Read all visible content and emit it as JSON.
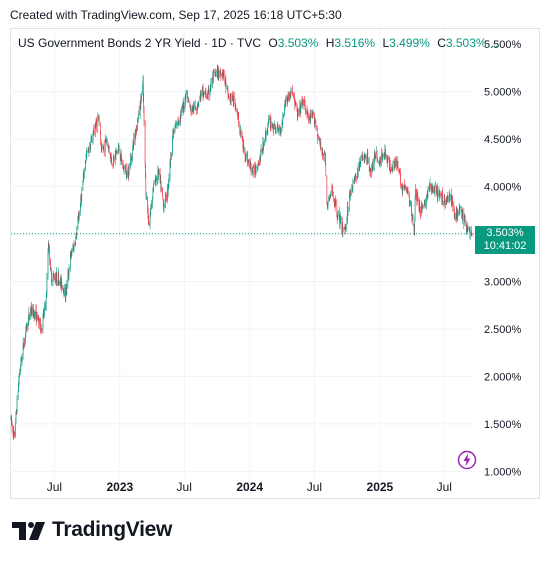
{
  "header": {
    "text": "Created with TradingView.com, Sep 17, 2025 16:18 UTC+5:30"
  },
  "legend": {
    "title": "US Government Bonds 2 YR Yield · 1D · TVC",
    "o_label": "O",
    "o_value": "3.503%",
    "h_label": "H",
    "h_value": "3.516%",
    "l_label": "L",
    "l_value": "3.499%",
    "c_label": "C",
    "c_value": "3.503%…"
  },
  "price_tag": {
    "price": "3.503%",
    "countdown": "10:41:02"
  },
  "logo": {
    "text": "TradingView",
    "icon": "tradingview-logo-icon"
  },
  "icons": {
    "bolt": "lightning-bolt-icon"
  },
  "colors": {
    "up": "#089981",
    "down": "#f23645",
    "grid": "#f0f3fa",
    "last_price_line": "#089981",
    "bolt": "#9c27b0"
  },
  "chart_data": {
    "type": "candlestick",
    "title": "US Government Bonds 2 YR Yield",
    "x_tick_labels": [
      "Jul",
      "2023",
      "Jul",
      "2024",
      "Jul",
      "2025",
      "Jul"
    ],
    "y_tick_labels": [
      "5.500%",
      "5.000%",
      "4.500%",
      "4.000%",
      "3.500%",
      "3.000%",
      "2.500%",
      "2.000%",
      "1.500%",
      "1.000%"
    ],
    "y_ticks": [
      5.5,
      5.0,
      4.5,
      4.0,
      3.5,
      3.0,
      2.5,
      2.0,
      1.5,
      1.0
    ],
    "ylim": [
      0.93,
      5.66
    ],
    "x_range": [
      "2022-03-01",
      "2025-09-17"
    ],
    "last_price": 3.503,
    "grid": true,
    "series": [
      {
        "path": [
          [
            "2022-03-01",
            1.55
          ],
          [
            "2022-03-10",
            1.35
          ],
          [
            "2022-03-25",
            2.05
          ],
          [
            "2022-04-10",
            2.45
          ],
          [
            "2022-04-25",
            2.7
          ],
          [
            "2022-05-10",
            2.65
          ],
          [
            "2022-05-25",
            2.5
          ],
          [
            "2022-06-08",
            2.8
          ],
          [
            "2022-06-14",
            3.42
          ],
          [
            "2022-06-22",
            3.05
          ],
          [
            "2022-07-08",
            3.05
          ],
          [
            "2022-07-25",
            2.95
          ],
          [
            "2022-08-01",
            2.85
          ],
          [
            "2022-08-15",
            3.25
          ],
          [
            "2022-08-30",
            3.45
          ],
          [
            "2022-09-15",
            3.9
          ],
          [
            "2022-09-27",
            4.3
          ],
          [
            "2022-10-10",
            4.45
          ],
          [
            "2022-10-21",
            4.6
          ],
          [
            "2022-11-03",
            4.75
          ],
          [
            "2022-11-10",
            4.35
          ],
          [
            "2022-11-25",
            4.5
          ],
          [
            "2022-12-10",
            4.25
          ],
          [
            "2022-12-28",
            4.4
          ],
          [
            "2023-01-10",
            4.2
          ],
          [
            "2023-01-25",
            4.15
          ],
          [
            "2023-02-10",
            4.5
          ],
          [
            "2023-02-25",
            4.8
          ],
          [
            "2023-03-07",
            5.07
          ],
          [
            "2023-03-15",
            3.95
          ],
          [
            "2023-03-24",
            3.6
          ],
          [
            "2023-04-05",
            4.0
          ],
          [
            "2023-04-20",
            4.15
          ],
          [
            "2023-05-04",
            3.8
          ],
          [
            "2023-05-15",
            3.95
          ],
          [
            "2023-05-30",
            4.55
          ],
          [
            "2023-06-15",
            4.7
          ],
          [
            "2023-06-30",
            4.85
          ],
          [
            "2023-07-06",
            5.0
          ],
          [
            "2023-07-20",
            4.8
          ],
          [
            "2023-08-05",
            4.85
          ],
          [
            "2023-08-20",
            5.0
          ],
          [
            "2023-09-05",
            4.95
          ],
          [
            "2023-09-20",
            5.15
          ],
          [
            "2023-10-05",
            5.2
          ],
          [
            "2023-10-19",
            5.2
          ],
          [
            "2023-11-01",
            4.95
          ],
          [
            "2023-11-20",
            4.9
          ],
          [
            "2023-12-05",
            4.6
          ],
          [
            "2023-12-15",
            4.4
          ],
          [
            "2023-12-29",
            4.25
          ],
          [
            "2024-01-12",
            4.15
          ],
          [
            "2024-01-30",
            4.3
          ],
          [
            "2024-02-12",
            4.5
          ],
          [
            "2024-02-25",
            4.7
          ],
          [
            "2024-03-12",
            4.6
          ],
          [
            "2024-03-28",
            4.6
          ],
          [
            "2024-04-10",
            4.9
          ],
          [
            "2024-04-30",
            5.0
          ],
          [
            "2024-05-15",
            4.75
          ],
          [
            "2024-05-30",
            4.9
          ],
          [
            "2024-06-15",
            4.7
          ],
          [
            "2024-06-30",
            4.75
          ],
          [
            "2024-07-15",
            4.45
          ],
          [
            "2024-07-31",
            4.3
          ],
          [
            "2024-08-05",
            3.8
          ],
          [
            "2024-08-20",
            3.95
          ],
          [
            "2024-09-05",
            3.7
          ],
          [
            "2024-09-18",
            3.55
          ],
          [
            "2024-09-25",
            3.55
          ],
          [
            "2024-10-10",
            3.95
          ],
          [
            "2024-10-25",
            4.1
          ],
          [
            "2024-11-10",
            4.3
          ],
          [
            "2024-11-25",
            4.3
          ],
          [
            "2024-12-10",
            4.15
          ],
          [
            "2024-12-18",
            4.35
          ],
          [
            "2024-12-31",
            4.25
          ],
          [
            "2025-01-13",
            4.38
          ],
          [
            "2025-01-31",
            4.2
          ],
          [
            "2025-02-15",
            4.28
          ],
          [
            "2025-03-05",
            4.0
          ],
          [
            "2025-03-20",
            3.95
          ],
          [
            "2025-04-04",
            3.65
          ],
          [
            "2025-04-08",
            3.55
          ],
          [
            "2025-04-11",
            3.95
          ],
          [
            "2025-04-25",
            3.75
          ],
          [
            "2025-05-10",
            3.85
          ],
          [
            "2025-05-22",
            4.0
          ],
          [
            "2025-06-05",
            3.95
          ],
          [
            "2025-06-20",
            3.9
          ],
          [
            "2025-07-05",
            3.85
          ],
          [
            "2025-07-20",
            3.9
          ],
          [
            "2025-08-01",
            3.7
          ],
          [
            "2025-08-15",
            3.75
          ],
          [
            "2025-08-25",
            3.65
          ],
          [
            "2025-09-05",
            3.55
          ],
          [
            "2025-09-17",
            3.503
          ]
        ]
      }
    ]
  }
}
